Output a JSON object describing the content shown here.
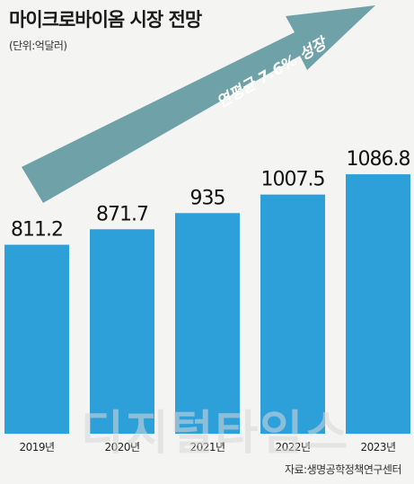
{
  "title": "마이크로바이옴 시장 전망",
  "unit": "(단위:억달러)",
  "source": "자료:생명공학정책연구센터",
  "watermark": "디지털타임스",
  "arrow_label": "연평균 7.6% 성장",
  "colors": {
    "bar": "#2d9fd9",
    "arrow": "#6fa1a8",
    "background": "#f4f4f2"
  },
  "chart_data": {
    "type": "bar",
    "title": "마이크로바이옴 시장 전망",
    "categories": [
      "2019년",
      "2020년",
      "2021년",
      "2022년",
      "2023년"
    ],
    "values": [
      811.2,
      871.7,
      935,
      1007.5,
      1086.8
    ],
    "value_labels": [
      "811.2",
      "871.7",
      "935",
      "1007.5",
      "1086.8"
    ],
    "xlabel": "",
    "ylabel": "",
    "grid": false,
    "legend": "none",
    "annotation": "연평균 7.6% 성장"
  }
}
